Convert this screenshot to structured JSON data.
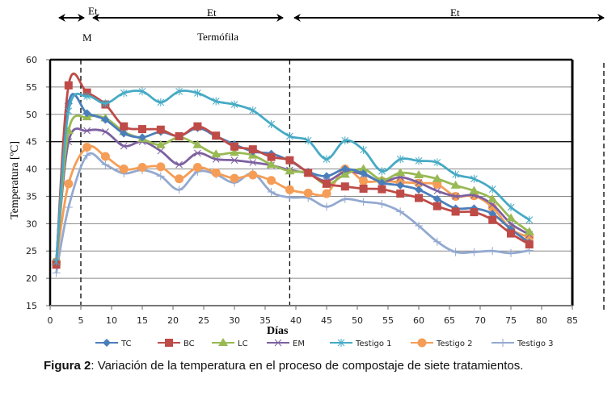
{
  "phases": [
    {
      "label": "Et",
      "sublabel": "M"
    },
    {
      "label": "Et",
      "sublabel": "Termófila"
    },
    {
      "label": "Et",
      "sublabel": ""
    }
  ],
  "caption": {
    "prefix": "Figura 2",
    "text": ": Variación de la temperatura en el proceso de compostaje de siete tratamientos."
  },
  "chart_data": {
    "type": "line",
    "title": "",
    "xlabel": "Días",
    "ylabel": "Temperatura [ºC]",
    "xlim": [
      0,
      85
    ],
    "ylim": [
      15,
      60
    ],
    "xticks": [
      0,
      5,
      10,
      15,
      20,
      25,
      30,
      35,
      40,
      45,
      50,
      55,
      60,
      65,
      70,
      75,
      80,
      85
    ],
    "yticks": [
      15,
      20,
      25,
      30,
      35,
      40,
      45,
      50,
      55,
      60
    ],
    "grid": "horizontal",
    "legend_position": "bottom",
    "phase_boundaries_days": [
      5,
      39,
      91
    ],
    "x": [
      1,
      3,
      6,
      9,
      12,
      15,
      18,
      21,
      24,
      27,
      30,
      33,
      36,
      39,
      42,
      45,
      48,
      51,
      54,
      57,
      60,
      63,
      66,
      69,
      72,
      75,
      78
    ],
    "series": [
      {
        "name": "TC",
        "color": "#4a7ebb",
        "marker": "diamond",
        "values": [
          23,
          52,
          50.2,
          49,
          46.5,
          45.8,
          46.8,
          46,
          47.5,
          46,
          44.5,
          43.2,
          42.8,
          41.5,
          39.5,
          38.7,
          40,
          39.2,
          37.5,
          37,
          36.2,
          34.5,
          32.8,
          32.8,
          31.8,
          29,
          26.5
        ]
      },
      {
        "name": "BC",
        "color": "#be4b48",
        "marker": "square",
        "values": [
          22.5,
          55.3,
          54,
          51.8,
          47.8,
          47.3,
          47.2,
          46,
          47.8,
          46.1,
          44.1,
          43.6,
          42.2,
          41.6,
          39.3,
          37.3,
          36.8,
          36.4,
          36.3,
          35.5,
          34.7,
          33.2,
          32.2,
          32.1,
          30.7,
          28.2,
          26.2
        ]
      },
      {
        "name": "LC",
        "color": "#98b954",
        "marker": "triangle",
        "values": [
          23,
          47,
          49.5,
          49.3,
          46.8,
          45.5,
          44.4,
          45.8,
          44.4,
          42.7,
          43,
          42.5,
          40.8,
          39.6,
          39.3,
          37.2,
          39,
          40,
          38,
          39.3,
          38.9,
          38.2,
          37,
          36,
          34.5,
          31,
          28.5
        ]
      },
      {
        "name": "EM",
        "color": "#7d60a0",
        "marker": "x",
        "values": [
          23,
          45,
          47,
          46.8,
          44.2,
          45,
          43.3,
          40.8,
          42.9,
          41.8,
          41.6,
          41.2,
          40.7,
          39.8,
          39.2,
          37.8,
          39.5,
          39,
          37.7,
          38.5,
          37.5,
          36,
          35,
          35.2,
          33.5,
          30,
          28
        ]
      },
      {
        "name": "Testigo 1",
        "color": "#46aac5",
        "marker": "star",
        "values": [
          23,
          50.6,
          53.3,
          52,
          53.9,
          54.2,
          52.2,
          54.2,
          53.9,
          52.4,
          51.8,
          50.7,
          48.2,
          46,
          45.2,
          41.8,
          45.2,
          43.5,
          39.6,
          41.8,
          41.5,
          41.2,
          39,
          38.2,
          36.3,
          33,
          30.7
        ]
      },
      {
        "name": "Testigo 2",
        "color": "#f59d56",
        "marker": "circle",
        "values": [
          23,
          37.3,
          44,
          42.3,
          40,
          40.3,
          40.4,
          38.2,
          40.3,
          39.3,
          38.3,
          38.9,
          37.9,
          36.2,
          35.6,
          35.5,
          40,
          37.8,
          37.8,
          37.6,
          37.4,
          37.2,
          35,
          35.1,
          33,
          29,
          27.5
        ]
      },
      {
        "name": "Testigo 3",
        "color": "#93a9d0",
        "marker": "plus",
        "values": [
          21,
          33,
          42.5,
          40.8,
          39.2,
          39.8,
          38.7,
          36.2,
          39.5,
          39,
          37.5,
          39.2,
          35.8,
          34.8,
          34.7,
          33.1,
          34.5,
          34,
          33.6,
          32.2,
          29.6,
          26.7,
          24.8,
          24.8,
          25,
          24.6,
          25.1
        ]
      }
    ]
  }
}
